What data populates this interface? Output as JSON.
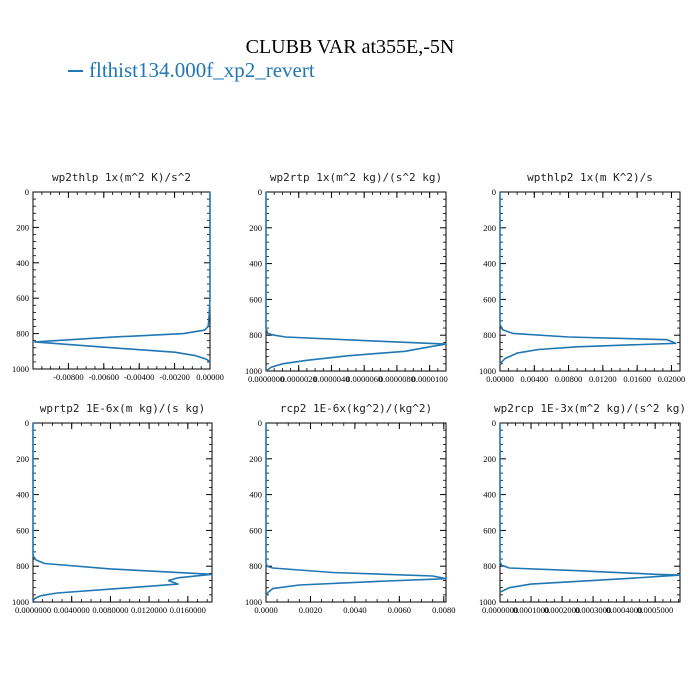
{
  "title": "CLUBB VAR at355E,-5N",
  "legend": {
    "label": "flthist134.000f_xp2_revert",
    "color": "#1f77b4"
  },
  "chart_data": [
    {
      "type": "line",
      "title": "wp2thlp   1x(m^2 K)/s^2",
      "xlim": [
        -0.01,
        0.0
      ],
      "ylim": [
        1000,
        0
      ],
      "y_ticks": [
        0,
        200,
        400,
        600,
        800,
        1000
      ],
      "x_ticks": [
        -0.008,
        -0.006,
        -0.004,
        -0.002,
        0.0
      ],
      "x_tick_labels": [
        "-0.00800",
        "-0.00600",
        "-0.00400",
        "-0.00200",
        "0.00000"
      ],
      "series": [
        {
          "x": [
            0.0,
            0.0,
            -5e-05,
            -0.0001,
            -0.0003,
            -0.0015,
            -0.0055,
            -0.0099,
            -0.0055,
            -0.002,
            -0.0008,
            -0.0002,
            0.0
          ],
          "y": [
            0,
            600,
            700,
            760,
            780,
            800,
            820,
            847,
            880,
            905,
            925,
            945,
            960
          ]
        }
      ]
    },
    {
      "type": "line",
      "title": "wp2rtp   1x(m^2 kg)/(s^2 kg)",
      "xlim": [
        0.0,
        1.1e-05
      ],
      "ylim": [
        1000,
        0
      ],
      "y_ticks": [
        0,
        200,
        400,
        600,
        800,
        1000
      ],
      "x_ticks": [
        0.0,
        2e-06,
        4e-06,
        6e-06,
        8e-06,
        1e-05
      ],
      "x_tick_labels": [
        "0.0000000",
        "0.0000020",
        "0.0000040",
        "0.0000060",
        "0.0000080",
        "0.0000100"
      ],
      "series": [
        {
          "x": [
            0.0,
            0.0,
            1e-07,
            5e-07,
            1.2e-06,
            6e-06,
            1.1e-05,
            1e-05,
            8.5e-06,
            5e-06,
            2.5e-06,
            1e-06,
            3e-07,
            0.0
          ],
          "y": [
            0,
            760,
            790,
            800,
            810,
            830,
            850,
            865,
            890,
            915,
            940,
            960,
            980,
            1000
          ]
        }
      ]
    },
    {
      "type": "line",
      "title": "wpthlp2   1x(m K^2)/s",
      "xlim": [
        0.0,
        0.021
      ],
      "ylim": [
        1000,
        0
      ],
      "y_ticks": [
        0,
        200,
        400,
        600,
        800,
        1000
      ],
      "x_ticks": [
        0.0,
        0.004,
        0.008,
        0.012,
        0.016,
        0.02
      ],
      "x_tick_labels": [
        "0.00000",
        "0.00400",
        "0.00800",
        "0.01200",
        "0.01600",
        "0.02000"
      ],
      "series": [
        {
          "x": [
            0.0,
            0.0,
            0.0003,
            0.0015,
            0.008,
            0.0195,
            0.0205,
            0.009,
            0.0045,
            0.002,
            0.0006,
            0.0
          ],
          "y": [
            0,
            740,
            770,
            790,
            810,
            825,
            845,
            865,
            880,
            900,
            930,
            960
          ]
        }
      ]
    },
    {
      "type": "line",
      "title": "wprtp2   1E-6x(m kg)/(s kg)",
      "xlim": [
        0.0,
        0.0185
      ],
      "ylim": [
        1000,
        0
      ],
      "y_ticks": [
        0,
        200,
        400,
        600,
        800,
        1000
      ],
      "x_ticks": [
        0.0,
        0.004,
        0.008,
        0.012,
        0.016
      ],
      "x_tick_labels": [
        "0.0000000",
        "0.0040000",
        "0.0080000",
        "0.0120000",
        "0.0160000"
      ],
      "series": [
        {
          "x": [
            0.0,
            0.0,
            0.0003,
            0.0012,
            0.008,
            0.0185,
            0.015,
            0.014,
            0.015,
            0.01,
            0.0025,
            0.0008,
            0.0002,
            0.0
          ],
          "y": [
            0,
            740,
            765,
            785,
            815,
            845,
            865,
            880,
            900,
            920,
            950,
            965,
            980,
            995
          ]
        }
      ]
    },
    {
      "type": "line",
      "title": "rcp2   1E-6x(kg^2)/(kg^2)",
      "xlim": [
        0.0,
        0.0081
      ],
      "ylim": [
        1000,
        0
      ],
      "y_ticks": [
        0,
        200,
        400,
        600,
        800,
        1000
      ],
      "x_ticks": [
        0.0,
        0.002,
        0.004,
        0.006,
        0.008
      ],
      "x_tick_labels": [
        "0.0000",
        "0.0020",
        "0.0040",
        "0.0060",
        "0.0080"
      ],
      "series": [
        {
          "x": [
            0.0,
            0.0,
            5e-05,
            0.0003,
            0.003,
            0.0075,
            0.0081,
            0.005,
            0.0015,
            0.0003,
            0.0001,
            0.0
          ],
          "y": [
            0,
            780,
            800,
            810,
            835,
            855,
            870,
            885,
            905,
            925,
            945,
            965
          ]
        }
      ]
    },
    {
      "type": "line",
      "title": "wp2rcp   1E-3x(m^2 kg)/(s^2 kg)",
      "xlim": [
        0.0,
        0.00058
      ],
      "ylim": [
        1000,
        0
      ],
      "y_ticks": [
        0,
        200,
        400,
        600,
        800,
        1000
      ],
      "x_ticks": [
        0.0,
        0.0001,
        0.0002,
        0.0003,
        0.0004,
        0.0005
      ],
      "x_tick_labels": [
        "0.0000000",
        "0.0001000",
        "0.0002000",
        "0.0003000",
        "0.0004000",
        "0.0005000"
      ],
      "series": [
        {
          "x": [
            0.0,
            0.0,
            5e-06,
            3e-05,
            0.00025,
            0.0005,
            0.00058,
            0.0004,
            0.0001,
            3e-05,
            0.0
          ],
          "y": [
            0,
            775,
            795,
            810,
            825,
            845,
            850,
            870,
            900,
            920,
            945
          ]
        }
      ]
    }
  ]
}
